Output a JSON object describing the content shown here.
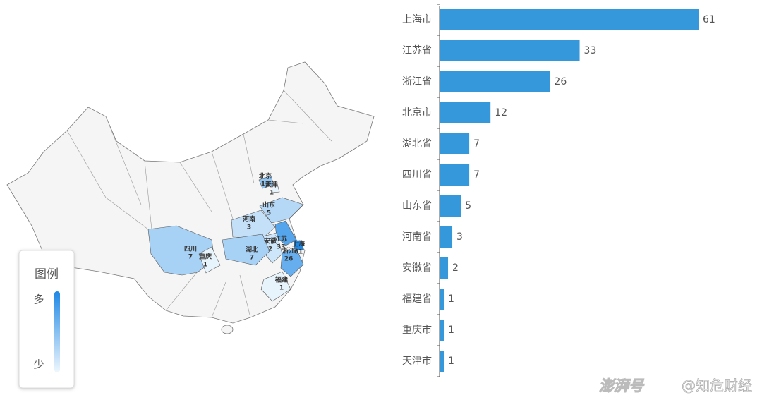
{
  "chart_data": [
    {
      "type": "map",
      "legend_title": "图例",
      "legend_high": "多",
      "legend_low": "少",
      "regions": [
        {
          "name": "北京",
          "value": 12
        },
        {
          "name": "天津",
          "value": 1
        },
        {
          "name": "山东",
          "value": 5
        },
        {
          "name": "河南",
          "value": 3
        },
        {
          "name": "江苏",
          "value": 33
        },
        {
          "name": "安徽",
          "value": 2
        },
        {
          "name": "上海",
          "value": 61
        },
        {
          "name": "浙江",
          "value": 26
        },
        {
          "name": "湖北",
          "value": 7
        },
        {
          "name": "四川",
          "value": 7
        },
        {
          "name": "重庆",
          "value": 1
        },
        {
          "name": "福建",
          "value": 1
        }
      ]
    },
    {
      "type": "bar",
      "categories": [
        "上海市",
        "江苏省",
        "浙江省",
        "北京市",
        "湖北省",
        "四川省",
        "山东省",
        "河南省",
        "安徽省",
        "福建省",
        "重庆市",
        "天津市"
      ],
      "values": [
        61,
        33,
        26,
        12,
        7,
        7,
        5,
        3,
        2,
        1,
        1,
        1
      ],
      "color": "#3498db"
    }
  ],
  "watermark": [
    "澎湃号",
    "@知危财经"
  ]
}
